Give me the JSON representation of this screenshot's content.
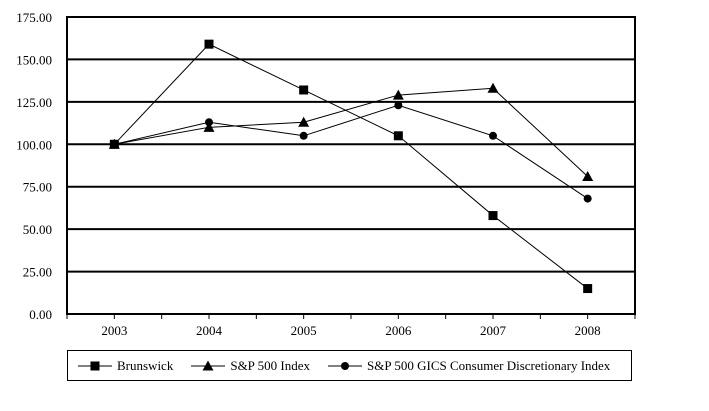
{
  "chart_data": {
    "type": "line",
    "title": "",
    "xlabel": "",
    "ylabel": "",
    "categories": [
      "2003",
      "2004",
      "2005",
      "2006",
      "2007",
      "2008"
    ],
    "series": [
      {
        "name": "Brunswick",
        "marker": "square",
        "values": [
          100.0,
          159.0,
          132.0,
          105.0,
          58.0,
          15.0
        ]
      },
      {
        "name": "S&P 500 Index",
        "marker": "triangle",
        "values": [
          100.0,
          110.0,
          113.0,
          129.0,
          133.0,
          81.0
        ]
      },
      {
        "name": "S&P 500 GICS Consumer Discretionary Index",
        "marker": "circle",
        "values": [
          100.0,
          113.0,
          105.0,
          123.0,
          105.0,
          68.0
        ]
      }
    ],
    "ylim": [
      0,
      175
    ],
    "yticks": [
      0,
      25,
      50,
      75,
      100,
      125,
      150,
      175
    ],
    "ytick_decimals": 2,
    "grid": "horizontal",
    "legend_position": "bottom",
    "line_color": "#000000",
    "background_color": "#ffffff"
  }
}
